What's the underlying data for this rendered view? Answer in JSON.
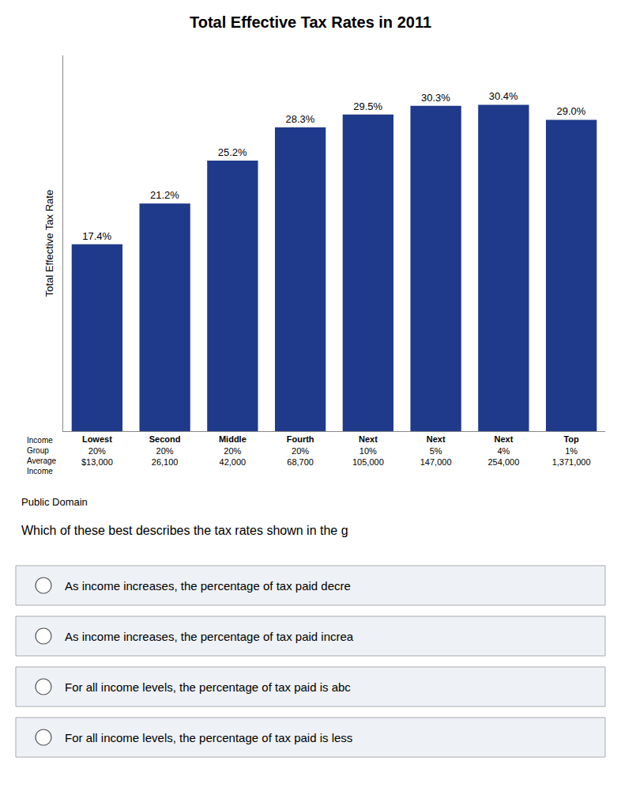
{
  "chart_data": {
    "type": "bar",
    "title": "Total Effective Tax Rates in 2011",
    "ylabel": "Total Effective Tax Rate",
    "xlabel": "Income\nGroup\nAverage\nIncome",
    "categories": [
      "Lowest\n20%\n$13,000",
      "Second\n20%\n26,100",
      "Middle\n20%\n42,000",
      "Fourth\n20%\n68,700",
      "Next\n10%\n105,000",
      "Next\n5%\n147,000",
      "Next\n4%\n254,000",
      "Top\n1%\n1,371,000"
    ],
    "values": [
      17.4,
      21.2,
      25.2,
      28.3,
      29.5,
      30.3,
      30.4,
      29.0
    ],
    "value_labels": [
      "17.4%",
      "21.2%",
      "25.2%",
      "28.3%",
      "29.5%",
      "30.3%",
      "30.4%",
      "29.0%"
    ],
    "color": "#1F3A8A",
    "ylim": [
      0,
      35
    ],
    "grid": false,
    "data_labels": true,
    "tick_labels": "x",
    "annotations": [
      "Public Domain",
      "Which of these best describes the tax rates shown in the g"
    ],
    "options": [
      "As income increases, the percentage of tax paid decre",
      "As income increases, the percentage of tax paid increa",
      "For all income levels, the percentage of tax paid is abc",
      "For all income levels, the percentage of tax paid is less"
    ]
  }
}
